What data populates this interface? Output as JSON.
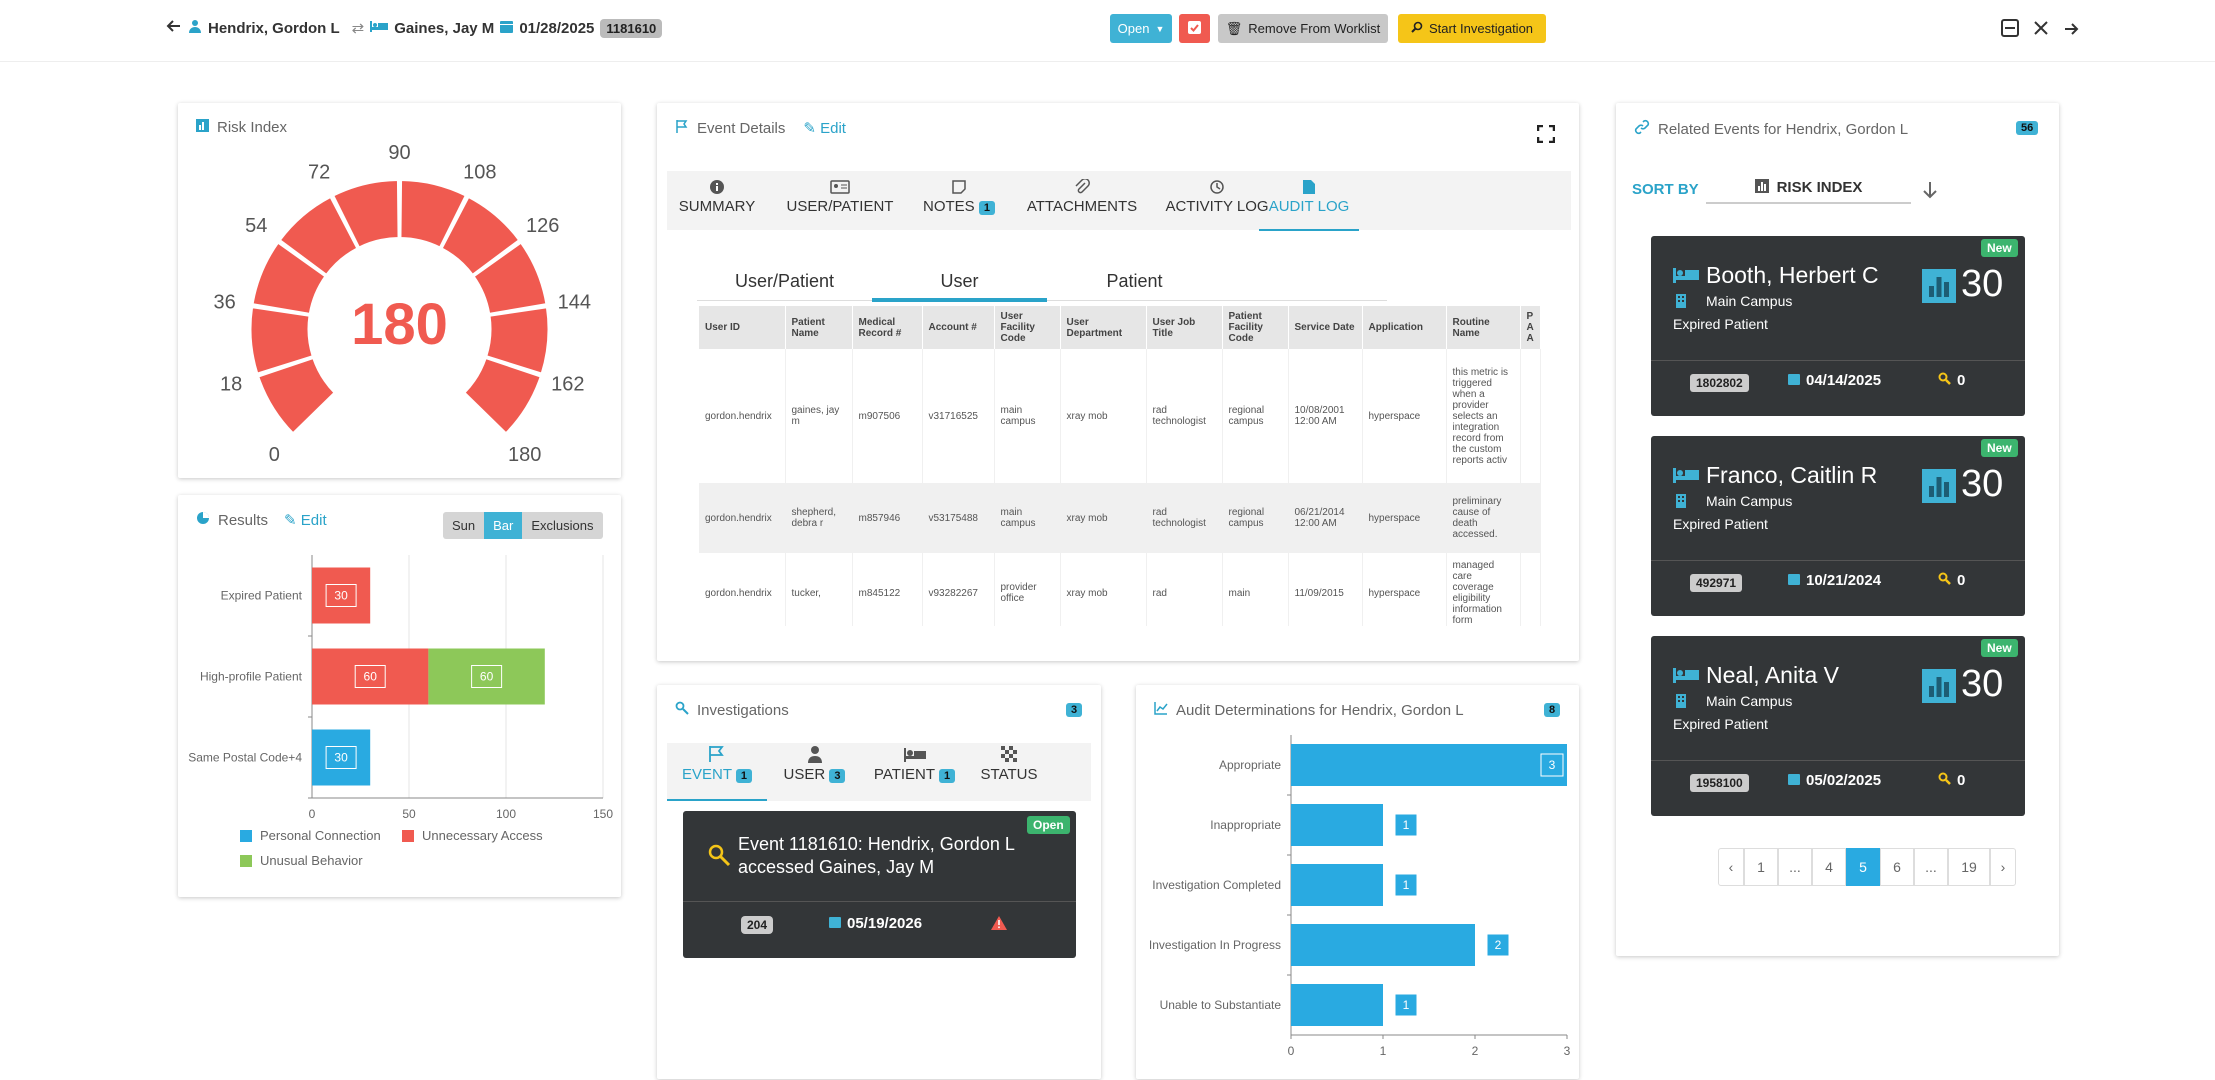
{
  "header": {
    "user": "Hendrix, Gordon L",
    "patient": "Gaines, Jay M",
    "date": "01/28/2025",
    "id": "1181610",
    "open_label": "Open",
    "remove_label": "Remove From Worklist",
    "start_label": "Start Investigation"
  },
  "risk": {
    "title": "Risk Index",
    "value": "180",
    "ticks": [
      "0",
      "18",
      "36",
      "54",
      "72",
      "90",
      "108",
      "126",
      "144",
      "162",
      "180"
    ],
    "gauge_max": 180,
    "gauge_value": 180
  },
  "results": {
    "title": "Results",
    "edit": "Edit",
    "toggle": [
      "Sun",
      "Bar",
      "Exclusions"
    ],
    "active": "Bar"
  },
  "chart_data": [
    {
      "type": "bar",
      "orientation": "horizontal",
      "stacked": true,
      "categories": [
        "Expired Patient",
        "High-profile Patient",
        "Same Postal Code+4"
      ],
      "series": [
        {
          "name": "Personal Connection",
          "color": "#29aae1",
          "values": [
            0,
            0,
            30
          ]
        },
        {
          "name": "Unnecessary Access",
          "color": "#f05a50",
          "values": [
            30,
            60,
            0
          ]
        },
        {
          "name": "Unusual Behavior",
          "color": "#8dc859",
          "values": [
            0,
            60,
            0
          ]
        }
      ],
      "xticks": [
        "0",
        "50",
        "100",
        "150"
      ],
      "xlim": [
        0,
        150
      ],
      "legend_position": "bottom"
    },
    {
      "type": "bar",
      "orientation": "horizontal",
      "categories": [
        "Appropriate",
        "Inappropriate",
        "Investigation Completed",
        "Investigation In Progress",
        "Unable to Substantiate"
      ],
      "values": [
        3,
        1,
        1,
        2,
        1
      ],
      "color": "#29aae1",
      "xticks": [
        "0",
        "1",
        "2",
        "3"
      ],
      "xlim": [
        0,
        3
      ]
    }
  ],
  "event": {
    "title": "Event Details",
    "edit": "Edit",
    "tabs": [
      {
        "label": "SUMMARY"
      },
      {
        "label": "USER/PATIENT"
      },
      {
        "label": "NOTES",
        "badge": "1"
      },
      {
        "label": "ATTACHMENTS"
      },
      {
        "label": "ACTIVITY LOG"
      },
      {
        "label": "AUDIT LOG"
      }
    ],
    "subtabs": [
      "User/Patient",
      "User",
      "Patient"
    ],
    "columns": [
      "User ID",
      "Patient Name",
      "Medical Record #",
      "Account #",
      "User Facility Code",
      "User Department",
      "User Job Title",
      "Patient Facility Code",
      "Service Date",
      "Application",
      "Routine Name",
      "P A A"
    ],
    "rows": [
      [
        "gordon.hendrix",
        "gaines, jay m",
        "m907506",
        "v31716525",
        "main campus",
        "xray mob",
        "rad technologist",
        "regional campus",
        "10/08/2001 12:00 AM",
        "hyperspace",
        "this metric is triggered when a provider selects an integration record from the custom reports activ",
        ""
      ],
      [
        "gordon.hendrix",
        "shepherd, debra r",
        "m857946",
        "v53175488",
        "main campus",
        "xray mob",
        "rad technologist",
        "regional campus",
        "06/21/2014 12:00 AM",
        "hyperspace",
        "preliminary cause of death accessed.",
        ""
      ],
      [
        "gordon.hendrix",
        "tucker,",
        "m845122",
        "v93282267",
        "provider office",
        "xray mob",
        "rad",
        "main",
        "11/09/2015",
        "hyperspace",
        "managed care coverage eligibility information form",
        ""
      ]
    ]
  },
  "investigations": {
    "title": "Investigations",
    "count": "3",
    "tabs": [
      {
        "label": "EVENT",
        "badge": "1"
      },
      {
        "label": "USER",
        "badge": "3"
      },
      {
        "label": "PATIENT",
        "badge": "1"
      },
      {
        "label": "STATUS"
      }
    ],
    "card": {
      "badge": "Open",
      "title": "Event 1181610: Hendrix, Gordon L accessed Gaines, Jay M",
      "num": "204",
      "date": "05/19/2026"
    }
  },
  "audit": {
    "title": "Audit Determinations for Hendrix, Gordon L",
    "count": "8"
  },
  "related": {
    "title": "Related Events for Hendrix, Gordon L",
    "count": "56",
    "sort_by": "SORT BY",
    "sort_value": "RISK INDEX",
    "cards": [
      {
        "name": "Booth, Herbert C",
        "campus": "Main Campus",
        "reason": "Expired Patient",
        "score": "30",
        "badge": "New",
        "id": "1802802",
        "date": "04/14/2025",
        "count": "0"
      },
      {
        "name": "Franco, Caitlin R",
        "campus": "Main Campus",
        "reason": "Expired Patient",
        "score": "30",
        "badge": "New",
        "id": "492971",
        "date": "10/21/2024",
        "count": "0"
      },
      {
        "name": "Neal, Anita V",
        "campus": "Main Campus",
        "reason": "Expired Patient",
        "score": "30",
        "badge": "New",
        "id": "1958100",
        "date": "05/02/2025",
        "count": "0"
      }
    ],
    "pages": [
      "‹",
      "1",
      "...",
      "4",
      "5",
      "6",
      "...",
      "19",
      "›"
    ],
    "current_page": "5"
  },
  "colors": {
    "accent": "#2aa3c9",
    "red": "#f05a50",
    "yellow": "#f5c518",
    "dark": "#333638",
    "green": "#8dc859"
  }
}
